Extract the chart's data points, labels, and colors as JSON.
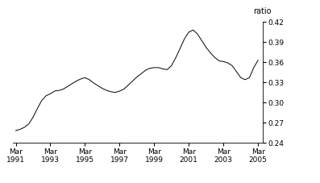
{
  "title": "",
  "ylabel": "ratio",
  "ylim": [
    0.24,
    0.42
  ],
  "yticks": [
    0.24,
    0.27,
    0.3,
    0.33,
    0.36,
    0.39,
    0.42
  ],
  "xtick_years": [
    1991,
    1993,
    1995,
    1997,
    1999,
    2001,
    2003,
    2005
  ],
  "line_color": "#000000",
  "background_color": "#ffffff",
  "x_values": [
    1991.17,
    1991.42,
    1991.67,
    1991.92,
    1992.17,
    1992.42,
    1992.67,
    1992.92,
    1993.17,
    1993.42,
    1993.67,
    1993.92,
    1994.17,
    1994.42,
    1994.67,
    1994.92,
    1995.17,
    1995.42,
    1995.67,
    1995.92,
    1996.17,
    1996.42,
    1996.67,
    1996.92,
    1997.17,
    1997.42,
    1997.67,
    1997.92,
    1998.17,
    1998.42,
    1998.67,
    1998.92,
    1999.17,
    1999.42,
    1999.67,
    1999.92,
    2000.17,
    2000.42,
    2000.67,
    2000.92,
    2001.17,
    2001.42,
    2001.67,
    2001.92,
    2002.17,
    2002.42,
    2002.67,
    2002.92,
    2003.17,
    2003.42,
    2003.67,
    2003.92,
    2004.17,
    2004.42,
    2004.67,
    2004.92,
    2005.17
  ],
  "y_values": [
    0.258,
    0.26,
    0.263,
    0.268,
    0.278,
    0.291,
    0.303,
    0.31,
    0.313,
    0.317,
    0.318,
    0.32,
    0.324,
    0.328,
    0.332,
    0.335,
    0.337,
    0.334,
    0.329,
    0.325,
    0.321,
    0.318,
    0.316,
    0.315,
    0.317,
    0.32,
    0.326,
    0.332,
    0.338,
    0.343,
    0.348,
    0.351,
    0.352,
    0.352,
    0.35,
    0.349,
    0.355,
    0.367,
    0.381,
    0.395,
    0.405,
    0.408,
    0.402,
    0.392,
    0.382,
    0.374,
    0.367,
    0.362,
    0.361,
    0.359,
    0.355,
    0.346,
    0.337,
    0.334,
    0.337,
    0.352,
    0.363
  ]
}
